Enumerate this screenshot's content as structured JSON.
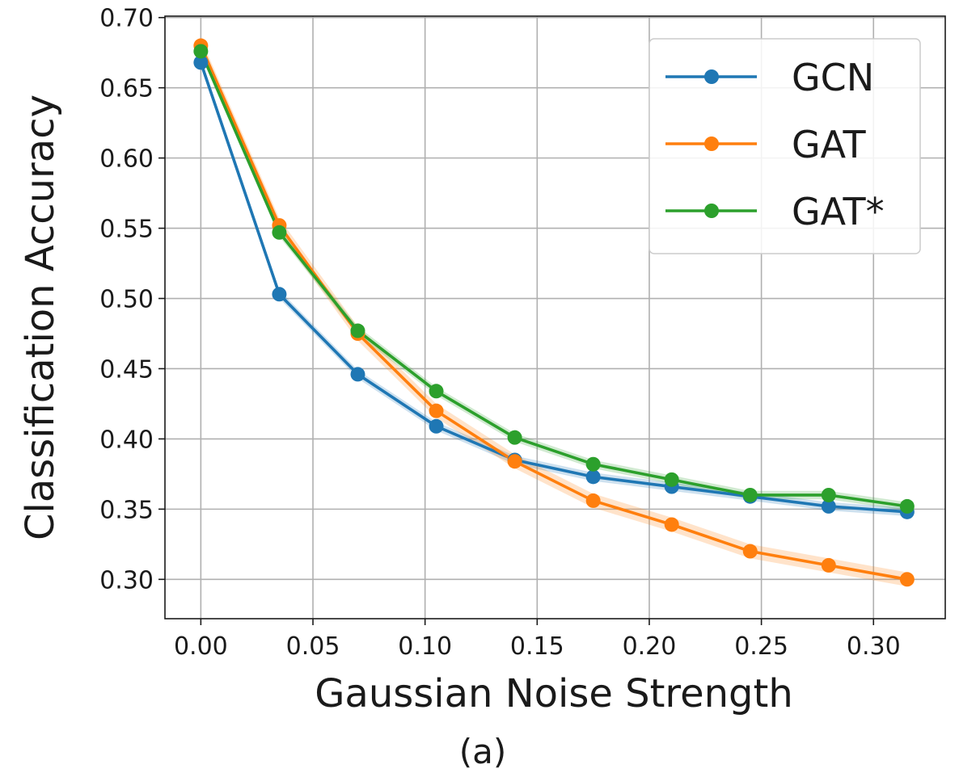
{
  "chart_data": {
    "type": "line",
    "title": "",
    "xlabel": "Gaussian Noise Strength",
    "ylabel": "Classification Accuracy",
    "caption": "(a)",
    "xlim": [
      -0.016,
      0.332
    ],
    "ylim": [
      0.272,
      0.701
    ],
    "xticks": [
      0.0,
      0.05,
      0.1,
      0.15,
      0.2,
      0.25,
      0.3
    ],
    "xtick_labels": [
      "0.00",
      "0.05",
      "0.10",
      "0.15",
      "0.20",
      "0.25",
      "0.30"
    ],
    "yticks": [
      0.3,
      0.35,
      0.4,
      0.45,
      0.5,
      0.55,
      0.6,
      0.65,
      0.7
    ],
    "ytick_labels": [
      "0.30",
      "0.35",
      "0.40",
      "0.45",
      "0.50",
      "0.55",
      "0.60",
      "0.65",
      "0.70"
    ],
    "grid": true,
    "legend_position": "top-right",
    "x": [
      0.0,
      0.035,
      0.07,
      0.105,
      0.14,
      0.175,
      0.21,
      0.245,
      0.28,
      0.315
    ],
    "series": [
      {
        "name": "GCN",
        "color": "#1f77b4",
        "values": [
          0.668,
          0.503,
          0.446,
          0.409,
          0.385,
          0.373,
          0.366,
          0.359,
          0.352,
          0.348
        ],
        "band": 0.003
      },
      {
        "name": "GAT",
        "color": "#ff7f0e",
        "values": [
          0.68,
          0.552,
          0.475,
          0.42,
          0.384,
          0.356,
          0.339,
          0.32,
          0.31,
          0.3
        ],
        "band": 0.005
      },
      {
        "name": "GAT*",
        "color": "#2ca02c",
        "values": [
          0.676,
          0.547,
          0.477,
          0.434,
          0.401,
          0.382,
          0.371,
          0.36,
          0.36,
          0.352
        ],
        "band": 0.003
      }
    ]
  }
}
